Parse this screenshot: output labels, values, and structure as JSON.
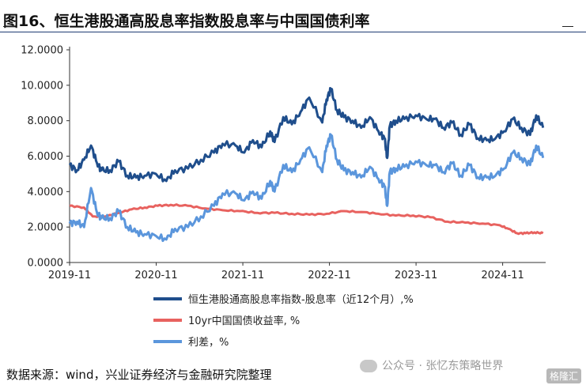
{
  "title": "图16、恒生港股通高股息率指数股息率与中国国债利率",
  "source": "数据来源：wind，兴业证券经济与金融研究院整理",
  "watermark": "公众号 · 张忆东策略世界",
  "watermark_badge": "格隆汇",
  "chart_data": {
    "type": "line",
    "ylim": [
      0,
      12
    ],
    "yticks": [
      "0.0000",
      "2.0000",
      "4.0000",
      "6.0000",
      "8.0000",
      "10.0000",
      "12.0000"
    ],
    "xticks": [
      "2019-11",
      "2020-11",
      "2021-11",
      "2022-11",
      "2023-11",
      "2024-11"
    ],
    "xlim": [
      2019.833,
      2025.33
    ],
    "legend_position": "bottom",
    "series": [
      {
        "name": "恒生港股通高股息率指数-股息率（近12个月）,%",
        "color": "#1f4e8c",
        "width": 3,
        "x": [
          2019.833,
          2019.92,
          2020.0,
          2020.08,
          2020.15,
          2020.2,
          2020.3,
          2020.4,
          2020.5,
          2020.6,
          2020.7,
          2020.83,
          2020.95,
          2021.05,
          2021.2,
          2021.35,
          2021.5,
          2021.6,
          2021.75,
          2021.85,
          2021.95,
          2022.05,
          2022.15,
          2022.2,
          2022.3,
          2022.4,
          2022.5,
          2022.6,
          2022.75,
          2022.8,
          2022.85,
          2022.92,
          2023.0,
          2023.1,
          2023.2,
          2023.3,
          2023.4,
          2023.47,
          2023.5,
          2023.53,
          2023.6,
          2023.7,
          2023.83,
          2023.95,
          2024.05,
          2024.15,
          2024.25,
          2024.35,
          2024.45,
          2024.55,
          2024.65,
          2024.75,
          2024.85,
          2024.95,
          2025.05,
          2025.15,
          2025.22,
          2025.3
        ],
        "y": [
          5.5,
          5.2,
          5.8,
          6.6,
          5.6,
          5.2,
          5.2,
          5.7,
          4.9,
          4.8,
          4.9,
          5.0,
          4.6,
          5.2,
          5.3,
          5.8,
          6.2,
          6.7,
          6.6,
          6.2,
          6.9,
          6.5,
          7.4,
          6.8,
          8.2,
          7.8,
          8.5,
          9.3,
          7.9,
          9.2,
          9.8,
          8.6,
          8.2,
          8.0,
          7.6,
          8.2,
          7.4,
          7.0,
          5.9,
          7.7,
          8.0,
          8.1,
          8.3,
          8.1,
          8.1,
          7.6,
          7.9,
          7.2,
          7.8,
          7.0,
          6.9,
          7.0,
          7.4,
          8.1,
          7.6,
          7.2,
          8.3,
          7.6
        ]
      },
      {
        "name": "10yr中国国债收益率, %",
        "color": "#e8625f",
        "width": 3,
        "x": [
          2019.833,
          2020.0,
          2020.1,
          2020.25,
          2020.4,
          2020.55,
          2020.7,
          2020.85,
          2021.0,
          2021.2,
          2021.4,
          2021.6,
          2021.8,
          2022.0,
          2022.2,
          2022.4,
          2022.6,
          2022.8,
          2023.0,
          2023.2,
          2023.4,
          2023.6,
          2023.8,
          2024.0,
          2024.2,
          2024.4,
          2024.6,
          2024.8,
          2024.9,
          2025.0,
          2025.1,
          2025.2,
          2025.3
        ],
        "y": [
          3.2,
          3.1,
          2.6,
          2.6,
          2.8,
          3.0,
          3.1,
          3.2,
          3.25,
          3.2,
          3.05,
          2.95,
          2.9,
          2.8,
          2.8,
          2.75,
          2.7,
          2.75,
          2.9,
          2.85,
          2.75,
          2.65,
          2.65,
          2.55,
          2.3,
          2.25,
          2.2,
          2.1,
          1.9,
          1.65,
          1.65,
          1.7,
          1.65
        ]
      },
      {
        "name": "利差，%",
        "color": "#5b96dc",
        "width": 3,
        "x": [
          2019.833,
          2019.92,
          2020.0,
          2020.08,
          2020.15,
          2020.2,
          2020.3,
          2020.4,
          2020.5,
          2020.6,
          2020.7,
          2020.83,
          2020.95,
          2021.05,
          2021.2,
          2021.35,
          2021.5,
          2021.6,
          2021.75,
          2021.85,
          2021.95,
          2022.05,
          2022.15,
          2022.2,
          2022.3,
          2022.4,
          2022.5,
          2022.6,
          2022.75,
          2022.8,
          2022.85,
          2022.92,
          2023.0,
          2023.1,
          2023.2,
          2023.3,
          2023.4,
          2023.47,
          2023.5,
          2023.53,
          2023.6,
          2023.7,
          2023.83,
          2023.95,
          2024.05,
          2024.15,
          2024.25,
          2024.35,
          2024.45,
          2024.55,
          2024.65,
          2024.75,
          2024.85,
          2024.95,
          2025.05,
          2025.15,
          2025.22,
          2025.3
        ],
        "y": [
          2.2,
          2.3,
          2.0,
          4.2,
          2.8,
          2.5,
          2.5,
          2.9,
          2.0,
          1.7,
          1.6,
          1.5,
          1.3,
          1.9,
          2.0,
          2.6,
          3.2,
          3.9,
          3.9,
          3.5,
          4.0,
          3.6,
          4.6,
          4.0,
          5.5,
          5.1,
          5.8,
          6.5,
          5.1,
          6.6,
          7.2,
          5.8,
          5.2,
          5.1,
          4.8,
          5.4,
          4.7,
          4.3,
          3.2,
          5.1,
          5.3,
          5.4,
          5.7,
          5.5,
          5.5,
          5.1,
          5.6,
          4.9,
          5.5,
          4.8,
          4.8,
          4.9,
          5.3,
          6.2,
          5.9,
          5.5,
          6.6,
          5.9
        ]
      }
    ]
  }
}
